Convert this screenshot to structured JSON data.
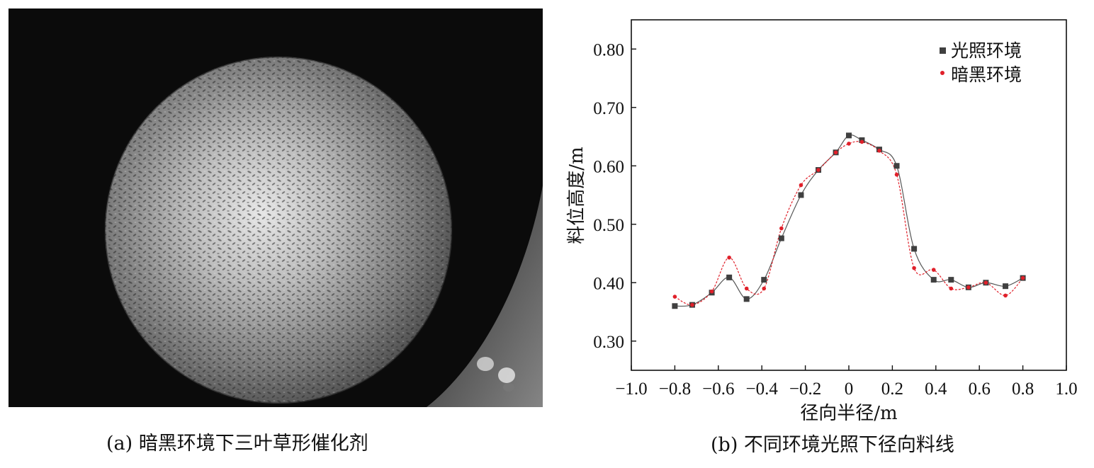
{
  "panel_a": {
    "caption": "(a) 暗黑环境下三叶草形催化剂"
  },
  "panel_b": {
    "caption": "(b) 不同环境光照下径向料线"
  },
  "chart_data": {
    "type": "line",
    "xlabel": "径向半径/m",
    "ylabel": "料位高度/m",
    "xlim": [
      -1.0,
      1.0
    ],
    "ylim": [
      0.25,
      0.85
    ],
    "x_ticks": [
      -1.0,
      -0.8,
      -0.6,
      -0.4,
      -0.2,
      0,
      0.2,
      0.4,
      0.6,
      0.8,
      1.0
    ],
    "x_tick_labels": [
      "−1.0",
      "−0.8",
      "−0.6",
      "−0.4",
      "−0.2",
      "0",
      "0.2",
      "0.4",
      "0.6",
      "0.8",
      "1.0"
    ],
    "y_ticks": [
      0.3,
      0.4,
      0.5,
      0.6,
      0.7,
      0.8
    ],
    "y_tick_labels": [
      "0.30",
      "0.40",
      "0.50",
      "0.60",
      "0.70",
      "0.80"
    ],
    "grid": false,
    "legend_position": "top-right",
    "series": [
      {
        "name": "光照环境",
        "marker": "square",
        "line_style": "solid",
        "color": "#404040",
        "line_color": "#555555",
        "x": [
          -0.8,
          -0.72,
          -0.63,
          -0.55,
          -0.47,
          -0.39,
          -0.31,
          -0.22,
          -0.14,
          -0.06,
          0.0,
          0.06,
          0.14,
          0.22,
          0.3,
          0.39,
          0.47,
          0.55,
          0.63,
          0.72,
          0.8
        ],
        "y": [
          0.36,
          0.362,
          0.383,
          0.409,
          0.372,
          0.405,
          0.476,
          0.55,
          0.593,
          0.623,
          0.652,
          0.644,
          0.628,
          0.6,
          0.458,
          0.405,
          0.405,
          0.392,
          0.4,
          0.394,
          0.408
        ]
      },
      {
        "name": "暗黑环境",
        "marker": "circle",
        "line_style": "dashed",
        "color": "#e0202a",
        "line_color": "#e0202a",
        "x": [
          -0.8,
          -0.72,
          -0.63,
          -0.55,
          -0.47,
          -0.39,
          -0.31,
          -0.22,
          -0.14,
          -0.06,
          0.0,
          0.06,
          0.14,
          0.22,
          0.3,
          0.39,
          0.47,
          0.55,
          0.63,
          0.72,
          0.8
        ],
        "y": [
          0.376,
          0.362,
          0.385,
          0.443,
          0.39,
          0.39,
          0.493,
          0.567,
          0.593,
          0.623,
          0.638,
          0.641,
          0.626,
          0.585,
          0.425,
          0.422,
          0.39,
          0.392,
          0.4,
          0.378,
          0.408
        ]
      }
    ]
  }
}
